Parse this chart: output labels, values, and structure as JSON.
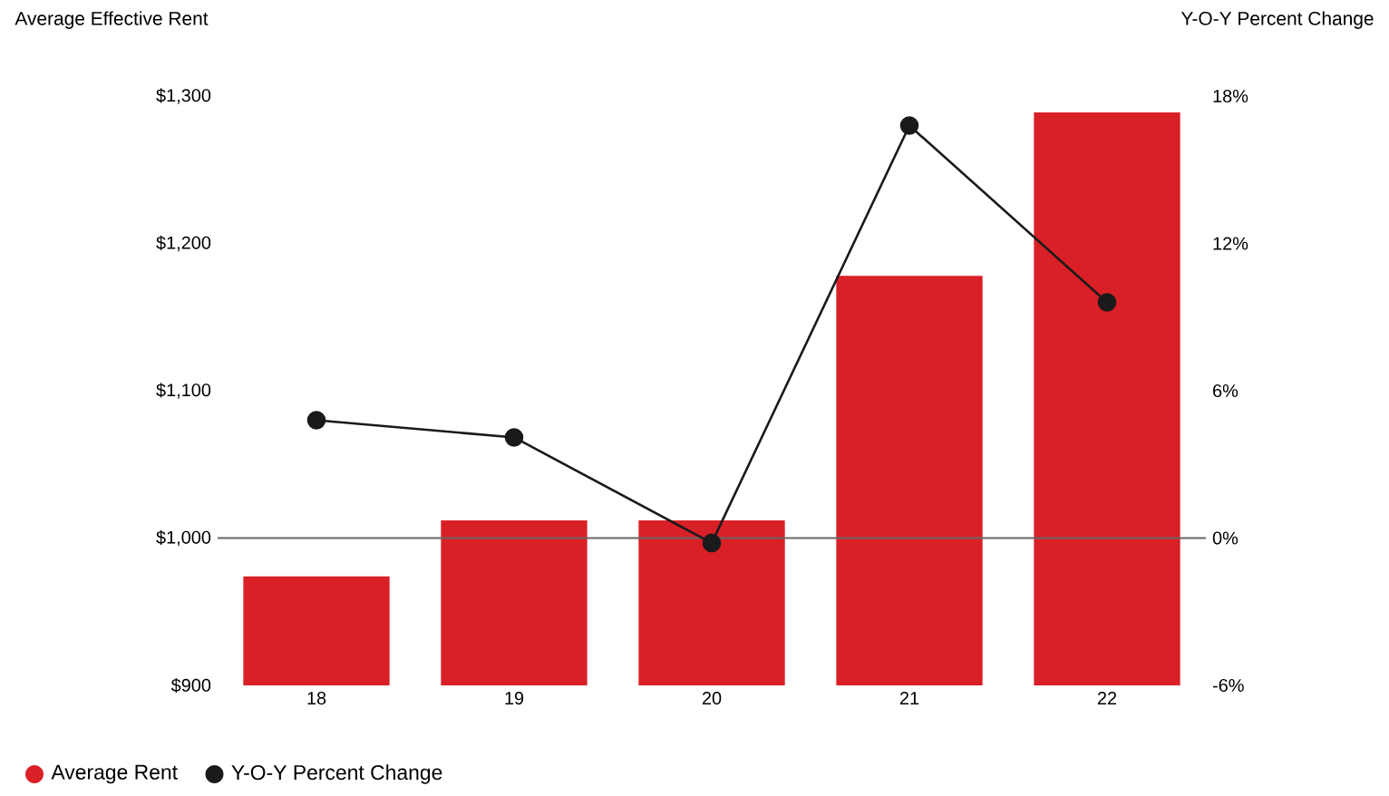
{
  "chart_data": {
    "type": "bar",
    "ylabel": "Average Effective Rent",
    "y2label": "Y-O-Y Percent Change",
    "categories": [
      "18",
      "19",
      "20",
      "21",
      "22"
    ],
    "series": [
      {
        "name": "Average Rent",
        "color": "#d92027",
        "values": [
          974,
          1012,
          1012,
          1178,
          1289
        ]
      },
      {
        "name": "Y-O-Y Percent Change",
        "type": "line",
        "axis": "y2",
        "color": "#1a1a1a",
        "marker": "circle",
        "values": [
          4.8,
          4.1,
          -0.2,
          16.8,
          9.6
        ]
      }
    ],
    "ylim": [
      900,
      1300
    ],
    "yticks": [
      {
        "value": 900,
        "label": "$900"
      },
      {
        "value": 1000,
        "label": "$1,000"
      },
      {
        "value": 1100,
        "label": "$1,100"
      },
      {
        "value": 1200,
        "label": "$1,200"
      },
      {
        "value": 1300,
        "label": "$1,300"
      }
    ],
    "y2lim": [
      -6,
      18
    ],
    "y2ticks": [
      {
        "value": -6,
        "label": "-6%"
      },
      {
        "value": 0,
        "label": "0%"
      },
      {
        "value": 6,
        "label": "6%"
      },
      {
        "value": 12,
        "label": "12%"
      },
      {
        "value": 18,
        "label": "18%"
      }
    ],
    "ref_lines": [
      {
        "axis": "y2",
        "value": 0,
        "color": "#666666"
      }
    ],
    "legend": "bottom left",
    "grid": false
  }
}
